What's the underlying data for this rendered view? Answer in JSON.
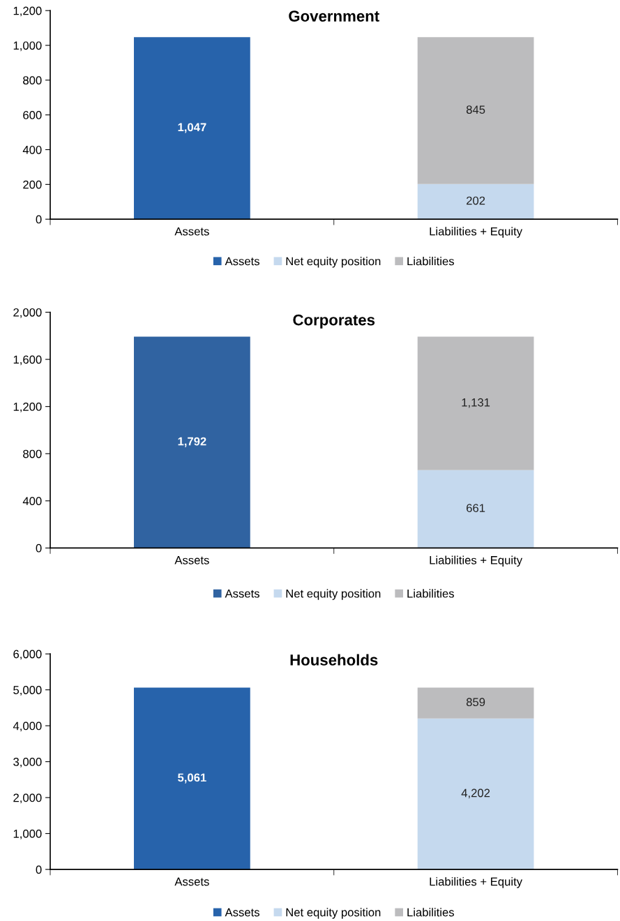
{
  "chart_data": [
    {
      "type": "bar",
      "title": "Government",
      "stacked": true,
      "legend": "bottom",
      "grid": false,
      "categories": [
        "Assets",
        "Liabilities + Equity"
      ],
      "ylim": [
        0,
        1200
      ],
      "yticks": [
        {
          "value": 0,
          "label": "0"
        },
        {
          "value": 200,
          "label": "200"
        },
        {
          "value": 400,
          "label": "400"
        },
        {
          "value": 600,
          "label": "600"
        },
        {
          "value": 800,
          "label": "800"
        },
        {
          "value": 1000,
          "label": "1,000"
        },
        {
          "value": 1200,
          "label": "1,200"
        }
      ],
      "series": [
        {
          "name": "Assets",
          "color": "#2763ab",
          "values": [
            1047,
            null
          ],
          "value_labels": [
            "1,047",
            null
          ]
        },
        {
          "name": "Net equity position",
          "color": "#c5d9ee",
          "values": [
            null,
            202
          ],
          "value_labels": [
            null,
            "202"
          ]
        },
        {
          "name": "Liabilities",
          "color": "#bcbcbe",
          "values": [
            null,
            845
          ],
          "value_labels": [
            null,
            "845"
          ]
        }
      ]
    },
    {
      "type": "bar",
      "title": "Corporates",
      "stacked": true,
      "legend": "bottom",
      "grid": false,
      "categories": [
        "Assets",
        "Liabilities + Equity"
      ],
      "ylim": [
        0,
        2000
      ],
      "yticks": [
        {
          "value": 0,
          "label": "0"
        },
        {
          "value": 400,
          "label": "400"
        },
        {
          "value": 800,
          "label": "800"
        },
        {
          "value": 1200,
          "label": "1,200"
        },
        {
          "value": 1600,
          "label": "1,600"
        },
        {
          "value": 2000,
          "label": "2,000"
        }
      ],
      "series": [
        {
          "name": "Assets",
          "color": "#3063a1",
          "values": [
            1792,
            null
          ],
          "value_labels": [
            "1,792",
            null
          ]
        },
        {
          "name": "Net equity position",
          "color": "#c5d9ee",
          "values": [
            null,
            661
          ],
          "value_labels": [
            null,
            "661"
          ]
        },
        {
          "name": "Liabilities",
          "color": "#bcbcbe",
          "values": [
            null,
            1131
          ],
          "value_labels": [
            null,
            "1,131"
          ]
        }
      ]
    },
    {
      "type": "bar",
      "title": "Households",
      "stacked": true,
      "legend": "bottom",
      "grid": false,
      "categories": [
        "Assets",
        "Liabilities + Equity"
      ],
      "ylim": [
        0,
        6000
      ],
      "yticks": [
        {
          "value": 0,
          "label": "0"
        },
        {
          "value": 1000,
          "label": "1,000"
        },
        {
          "value": 2000,
          "label": "2,000"
        },
        {
          "value": 3000,
          "label": "3,000"
        },
        {
          "value": 4000,
          "label": "4,000"
        },
        {
          "value": 5000,
          "label": "5,000"
        },
        {
          "value": 6000,
          "label": "6,000"
        }
      ],
      "series": [
        {
          "name": "Assets",
          "color": "#2763ab",
          "values": [
            5061,
            null
          ],
          "value_labels": [
            "5,061",
            null
          ]
        },
        {
          "name": "Net equity position",
          "color": "#c5d9ee",
          "values": [
            null,
            4202
          ],
          "value_labels": [
            null,
            "4,202"
          ]
        },
        {
          "name": "Liabilities",
          "color": "#bcbcbe",
          "values": [
            null,
            859
          ],
          "value_labels": [
            null,
            "859"
          ]
        }
      ]
    }
  ]
}
